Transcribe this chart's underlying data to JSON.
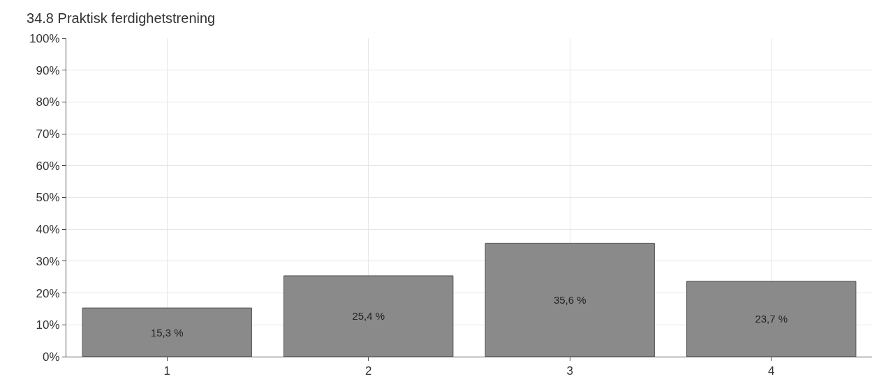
{
  "chart_data": {
    "type": "bar",
    "title": "34.8 Praktisk ferdighetstrening",
    "categories": [
      "1",
      "2",
      "3",
      "4"
    ],
    "values": [
      15.3,
      25.4,
      35.6,
      23.7
    ],
    "value_labels": [
      "15,3 %",
      "25,4 %",
      "35,6 %",
      "23,7 %"
    ],
    "color": "#8a8a8a",
    "ylim": [
      0,
      100
    ],
    "yticks": [
      {
        "value": 0,
        "label": "0%"
      },
      {
        "value": 10,
        "label": "10%"
      },
      {
        "value": 20,
        "label": "20%"
      },
      {
        "value": 30,
        "label": "30%"
      },
      {
        "value": 40,
        "label": "40%"
      },
      {
        "value": 50,
        "label": "50%"
      },
      {
        "value": 60,
        "label": "60%"
      },
      {
        "value": 70,
        "label": "70%"
      },
      {
        "value": 80,
        "label": "80%"
      },
      {
        "value": 90,
        "label": "90%"
      },
      {
        "value": 100,
        "label": "100%"
      }
    ],
    "grid": true
  }
}
